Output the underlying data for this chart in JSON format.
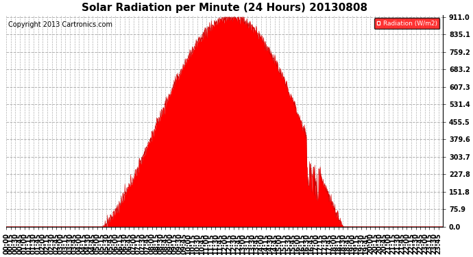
{
  "title": "Solar Radiation per Minute (24 Hours) 20130808",
  "copyright": "Copyright 2013 Cartronics.com",
  "legend_label": "Radiation (W/m2)",
  "yticks": [
    0.0,
    75.9,
    151.8,
    227.8,
    303.7,
    379.6,
    455.5,
    531.4,
    607.3,
    683.2,
    759.2,
    835.1,
    911.0
  ],
  "ymax": 911.0,
  "ymin": 0.0,
  "plot_bg_color": "#ffffff",
  "fill_color": "#ff0000",
  "line_color": "#cc0000",
  "grid_color": "#b0b0b0",
  "title_fontsize": 11,
  "copyright_fontsize": 7,
  "tick_fontsize": 7,
  "n_minutes": 1440,
  "peak_minute": 743,
  "peak_value": 911.0,
  "sunrise_minute": 312,
  "sunset_minute": 1112
}
